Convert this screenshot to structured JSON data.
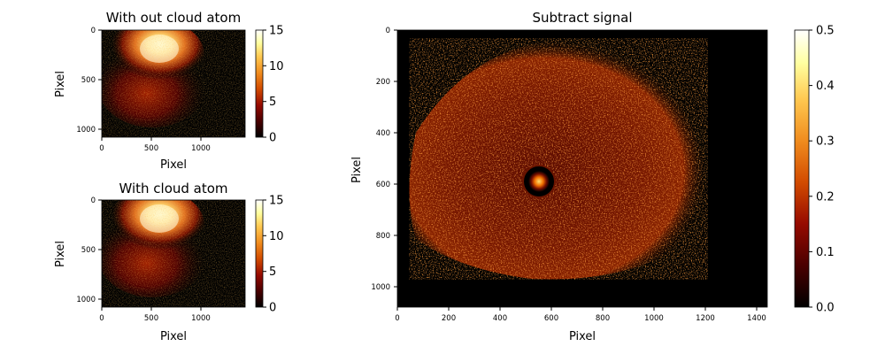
{
  "chart_data": [
    {
      "type": "heatmap",
      "title": "With out cloud atom",
      "xlabel": "Pixel",
      "ylabel": "Pixel",
      "xlim": [
        0,
        1440
      ],
      "ylim": [
        1080,
        0
      ],
      "xticks": [
        0,
        500,
        1000
      ],
      "yticks": [
        0,
        500,
        1000
      ],
      "colormap": "afmhot",
      "colorbar": {
        "range": [
          0,
          15
        ],
        "ticks": [
          0,
          5,
          10,
          15
        ]
      },
      "description_values": {
        "bright_center": [
          520,
          230
        ],
        "dim_center": [
          500,
          520
        ],
        "bright_peak": 14
      }
    },
    {
      "type": "heatmap",
      "title": "With cloud atom",
      "xlabel": "Pixel",
      "ylabel": "Pixel",
      "xlim": [
        0,
        1440
      ],
      "ylim": [
        1080,
        0
      ],
      "xticks": [
        0,
        500,
        1000
      ],
      "yticks": [
        0,
        500,
        1000
      ],
      "colormap": "afmhot",
      "colorbar": {
        "range": [
          0,
          15
        ],
        "ticks": [
          0,
          5,
          10,
          15
        ]
      },
      "description_values": {
        "bright_center": [
          520,
          230
        ],
        "dim_center": [
          500,
          520
        ],
        "bright_peak": 14
      }
    },
    {
      "type": "heatmap",
      "title": "Subtract signal",
      "xlabel": "Pixel",
      "ylabel": "Pixel",
      "xlim": [
        0,
        1440
      ],
      "ylim": [
        1080,
        0
      ],
      "xticks": [
        0,
        200,
        400,
        600,
        800,
        1000,
        1200,
        1400
      ],
      "yticks": [
        0,
        200,
        400,
        600,
        800,
        1000
      ],
      "colormap": "afmhot",
      "colorbar": {
        "range": [
          0,
          0.5
        ],
        "ticks": [
          "0.0",
          "0.1",
          "0.2",
          "0.3",
          "0.4",
          "0.5"
        ]
      },
      "description_values": {
        "atom_cloud_center": [
          555,
          590
        ],
        "atom_cloud_radius": 45,
        "ring_radius": 60
      }
    }
  ],
  "colors": {
    "background": "#000000",
    "mid": "#c83200",
    "bright": "#ffff80",
    "peak": "#ffffff"
  }
}
